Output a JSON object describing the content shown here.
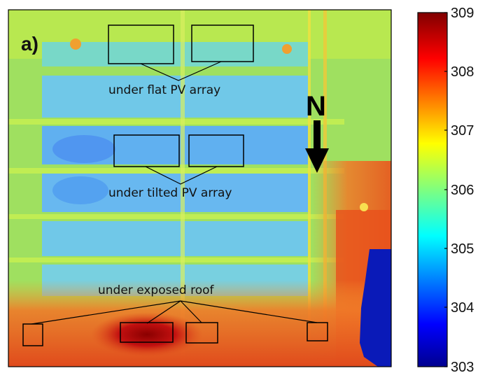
{
  "figure": {
    "panel_label": "a)",
    "north_label": "N",
    "annotations": {
      "flat_array": "under flat PV array",
      "tilted_array": "under tilted PV array",
      "exposed_roof": "under exposed roof"
    },
    "colorbar": {
      "ticks": [
        "309",
        "308",
        "307",
        "306",
        "305",
        "304",
        "303"
      ],
      "min": 303,
      "max": 309,
      "colormap": "jet"
    }
  }
}
